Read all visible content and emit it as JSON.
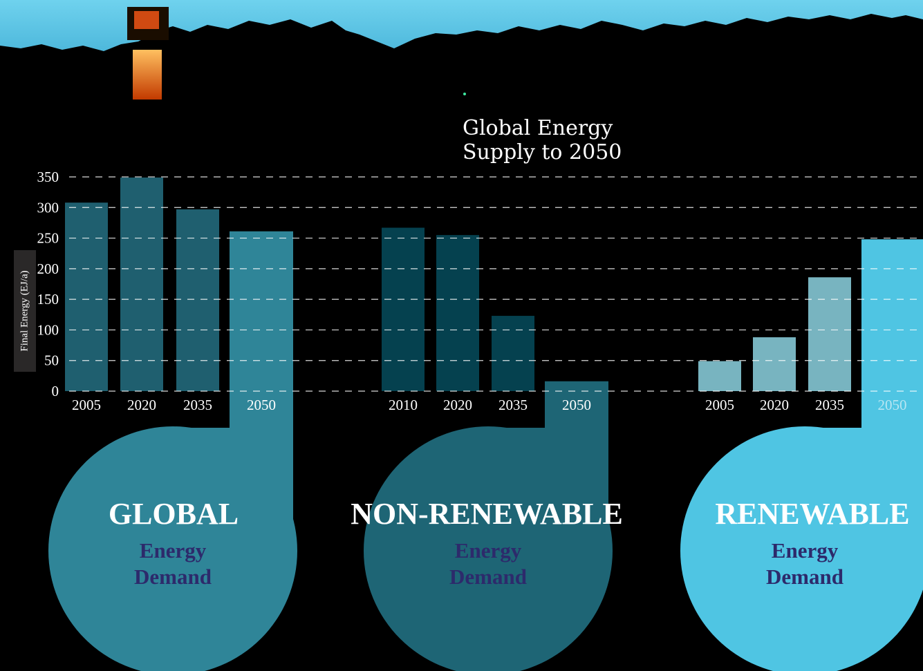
{
  "chart_data": {
    "type": "bar",
    "title": "Global Energy Supply to 2050",
    "ylabel": "Final Energy (EJ/a)",
    "ylim": [
      0,
      350
    ],
    "yticks": [
      0,
      50,
      100,
      150,
      200,
      250,
      300,
      350
    ],
    "grid": true,
    "groups": [
      {
        "name": "GLOBAL",
        "subtitle": [
          "Energy",
          "Demand"
        ],
        "color": "#1f5f6f",
        "highlight_color": "#2f8598",
        "categories": [
          "2005",
          "2020",
          "2035",
          "2050"
        ],
        "values": [
          308,
          349,
          297,
          261
        ]
      },
      {
        "name": "NON-RENEWABLE",
        "subtitle": [
          "Energy",
          "Demand"
        ],
        "color": "#05414f",
        "highlight_color": "#1e6575",
        "categories": [
          "2010",
          "2020",
          "2035",
          "2050"
        ],
        "values": [
          267,
          255,
          123,
          16
        ]
      },
      {
        "name": "RENEWABLE",
        "subtitle": [
          "Energy",
          "Demand"
        ],
        "color": "#78b4c0",
        "highlight_color": "#4fc5e3",
        "categories": [
          "2005",
          "2020",
          "2035",
          "2050"
        ],
        "values": [
          49,
          88,
          186,
          248
        ]
      }
    ]
  }
}
